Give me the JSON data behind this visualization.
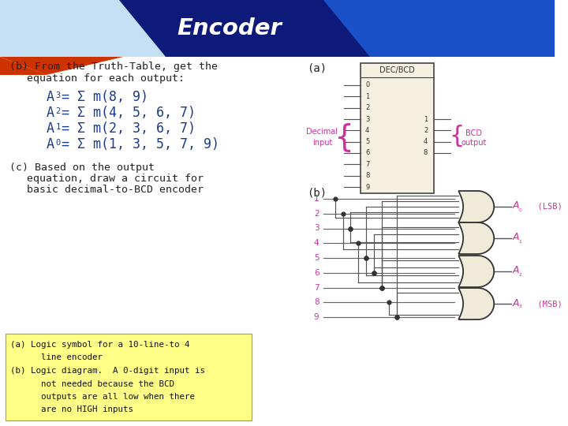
{
  "title": "Encoder",
  "bg_color": "#ffffff",
  "header_dark_blue": "#0d1a7a",
  "header_blue": "#1a50c8",
  "header_light_blue": "#c5dff5",
  "header_red": "#cc3300",
  "text_dark": "#222222",
  "text_blue": "#1a3a8c",
  "text_pink": "#cc3399",
  "note_bg": "#ffff88",
  "a_label": "(a)",
  "b_label": "(b)"
}
